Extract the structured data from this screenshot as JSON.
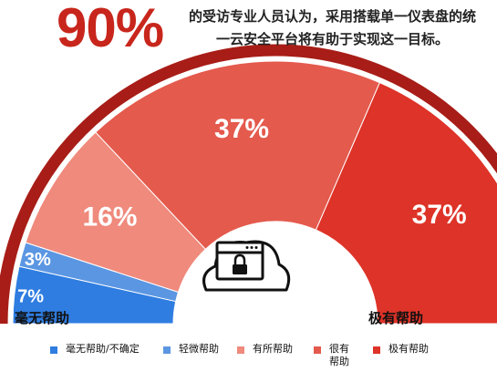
{
  "headline": {
    "stat": "90%",
    "line1": "的受访专业人员认为，采用搭载单一仪表盘的统",
    "line2": "一云安全平台将有助于实现这一目标。"
  },
  "end_labels": {
    "left": "毫无帮助",
    "right": "极有帮助"
  },
  "colors": {
    "outer_arc": "#a81d17",
    "icon_stroke": "#111111"
  },
  "icon": "cloud-lock-icon",
  "chart_data": {
    "type": "semicircle-donut",
    "categories": [
      "毫无帮助/不确定",
      "轻微帮助",
      "有所帮助",
      "很有帮助",
      "极有帮助"
    ],
    "values": [
      7,
      3,
      16,
      37,
      37
    ],
    "labels": [
      "7%",
      "3%",
      "16%",
      "37%",
      "37%"
    ],
    "colors": [
      "#2f7de1",
      "#5b96e2",
      "#ef8a7c",
      "#e45a4d",
      "#de3328"
    ],
    "unit": "%",
    "legend_position": "bottom"
  },
  "legend": [
    {
      "text": "毫无帮助/不确定",
      "color": "#2f7de1"
    },
    {
      "text": "轻微帮助",
      "color": "#5b96e2"
    },
    {
      "text": "有所帮助",
      "color": "#ef8a7c"
    },
    {
      "text": "很有帮助",
      "color": "#e45a4d"
    },
    {
      "text": "极有帮助",
      "color": "#de3328"
    }
  ]
}
